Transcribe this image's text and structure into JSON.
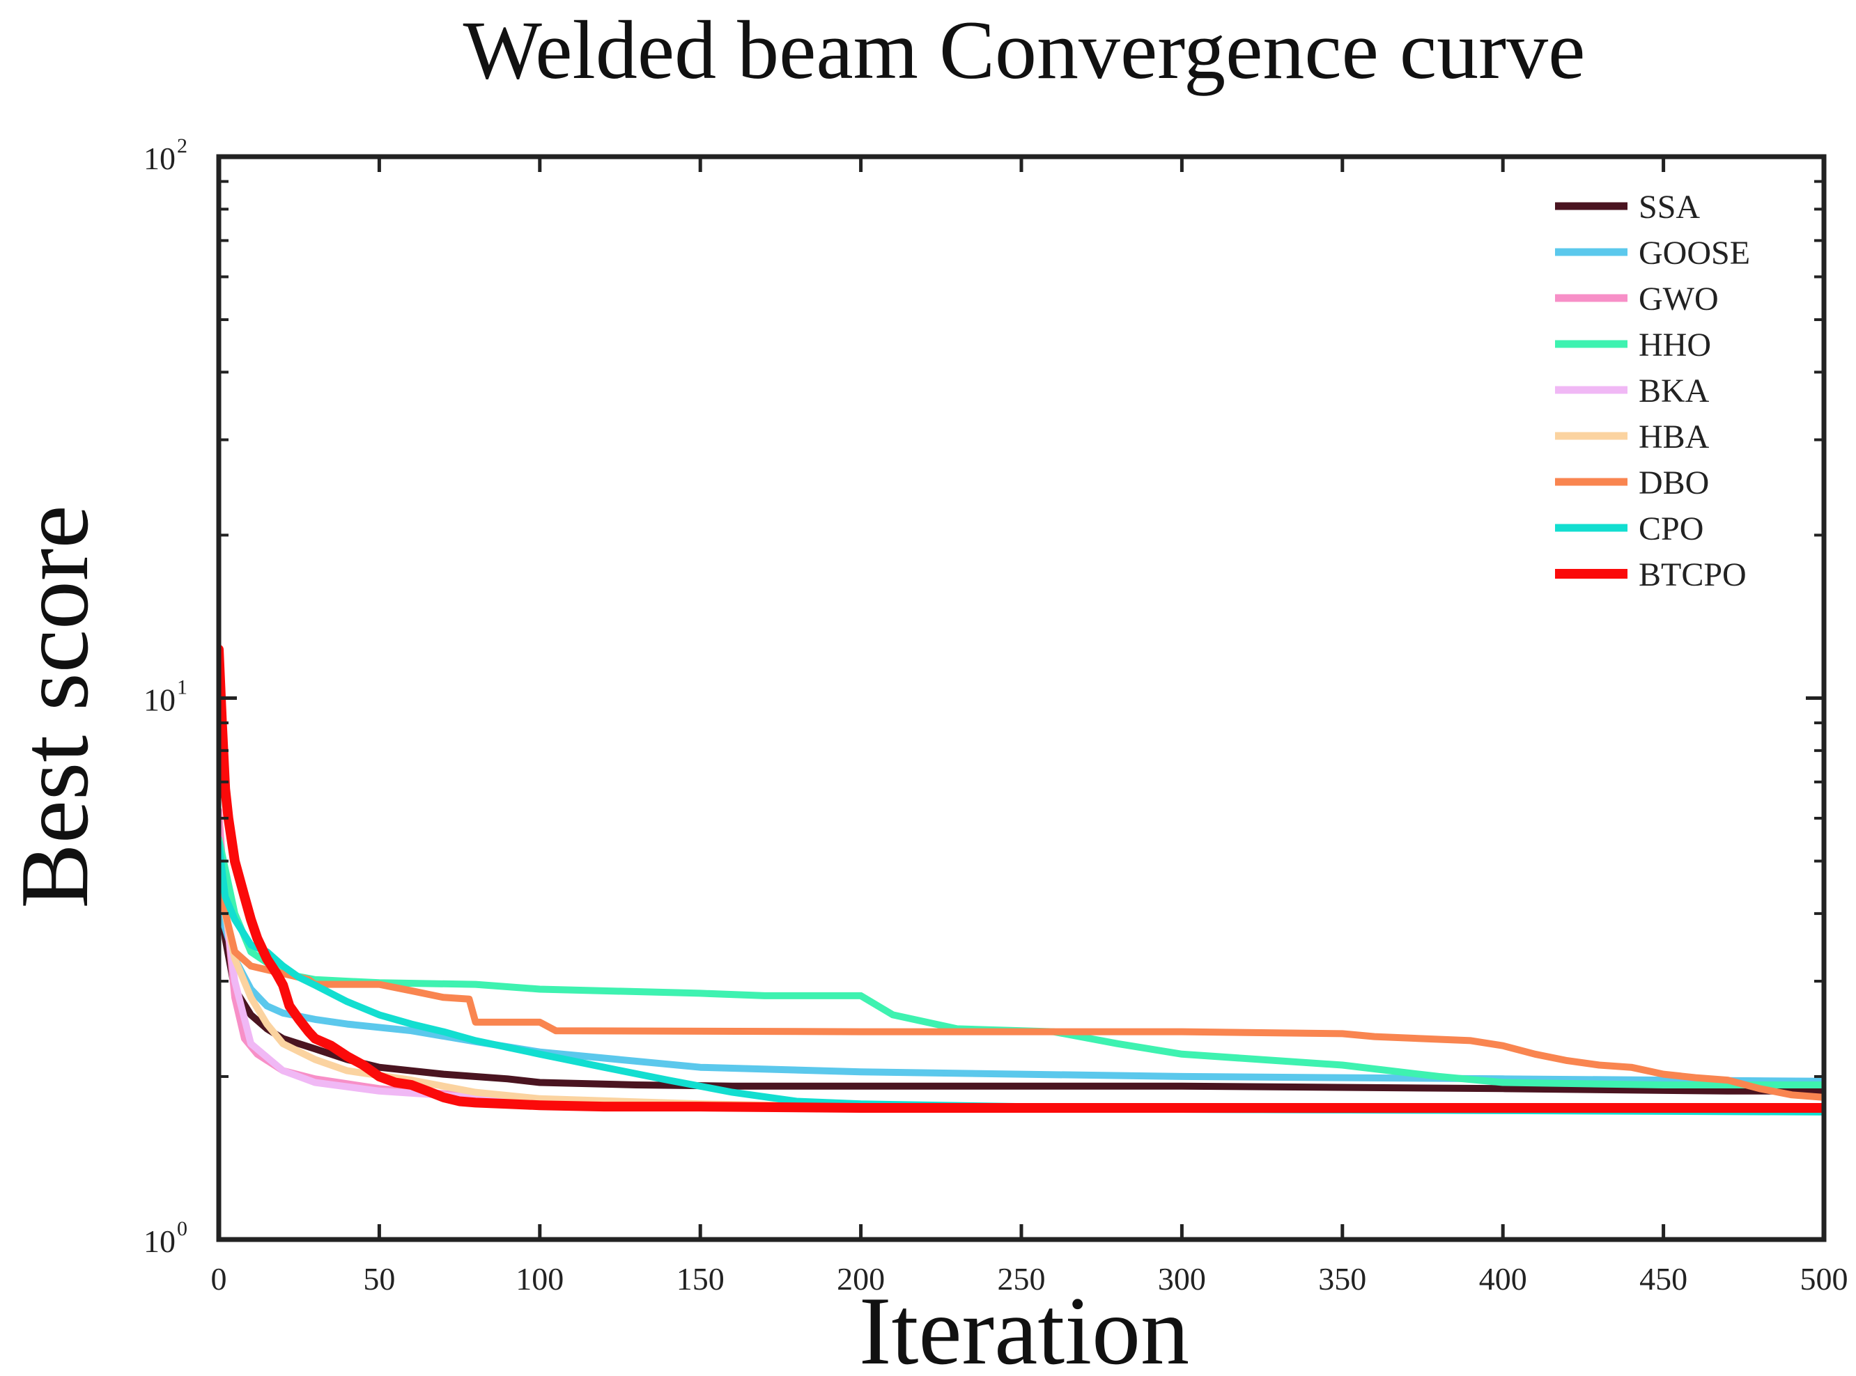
{
  "chart_data": {
    "type": "line",
    "title": "Welded beam Convergence curve",
    "xlabel": "Iteration",
    "ylabel": "Best score",
    "xlim": [
      0,
      500
    ],
    "ylim": [
      1,
      100
    ],
    "yscale": "log",
    "legend_position": "top-right",
    "x_ticks": [
      {
        "value": 0,
        "label": "0"
      },
      {
        "value": 50,
        "label": "50"
      },
      {
        "value": 100,
        "label": "100"
      },
      {
        "value": 150,
        "label": "150"
      },
      {
        "value": 200,
        "label": "200"
      },
      {
        "value": 250,
        "label": "250"
      },
      {
        "value": 300,
        "label": "300"
      },
      {
        "value": 350,
        "label": "350"
      },
      {
        "value": 400,
        "label": "400"
      },
      {
        "value": 450,
        "label": "450"
      },
      {
        "value": 500,
        "label": "500"
      }
    ],
    "y_ticks": [
      {
        "value": 1,
        "base": "10",
        "exp": "0"
      },
      {
        "value": 10,
        "base": "10",
        "exp": "1"
      },
      {
        "value": 100,
        "base": "10",
        "exp": "2"
      }
    ],
    "series": [
      {
        "name": "SSA",
        "color": "#4a1420",
        "x": [
          0,
          2,
          5,
          10,
          15,
          20,
          30,
          40,
          50,
          70,
          90,
          100,
          130,
          160,
          200,
          300,
          400,
          470,
          500
        ],
        "y": [
          4.6,
          3.6,
          2.9,
          2.6,
          2.45,
          2.35,
          2.25,
          2.15,
          2.08,
          2.02,
          1.98,
          1.95,
          1.93,
          1.92,
          1.92,
          1.92,
          1.9,
          1.88,
          1.88
        ]
      },
      {
        "name": "GOOSE",
        "color": "#5bc8ec",
        "x": [
          0,
          5,
          10,
          15,
          20,
          30,
          40,
          60,
          80,
          100,
          150,
          200,
          250,
          300,
          350,
          400,
          450,
          500
        ],
        "y": [
          4.1,
          3.3,
          2.9,
          2.7,
          2.62,
          2.55,
          2.5,
          2.43,
          2.32,
          2.22,
          2.08,
          2.04,
          2.02,
          2.0,
          1.99,
          1.98,
          1.97,
          1.96
        ]
      },
      {
        "name": "GWO",
        "color": "#f78fc7",
        "x": [
          0,
          2,
          5,
          8,
          12,
          20,
          30,
          50,
          80,
          100,
          150,
          200,
          300,
          400,
          500
        ],
        "y": [
          6.2,
          4.2,
          2.8,
          2.35,
          2.2,
          2.05,
          1.98,
          1.9,
          1.84,
          1.8,
          1.77,
          1.75,
          1.74,
          1.73,
          1.73
        ]
      },
      {
        "name": "HHO",
        "color": "#3ef2b0",
        "x": [
          0,
          5,
          10,
          20,
          30,
          50,
          80,
          100,
          150,
          170,
          200,
          210,
          230,
          260,
          280,
          300,
          350,
          380,
          400,
          450,
          500
        ],
        "y": [
          5.5,
          4.0,
          3.4,
          3.1,
          3.02,
          2.98,
          2.96,
          2.9,
          2.85,
          2.82,
          2.82,
          2.6,
          2.45,
          2.42,
          2.3,
          2.2,
          2.1,
          2.0,
          1.95,
          1.93,
          1.93
        ]
      },
      {
        "name": "BKA",
        "color": "#f0b8f5",
        "x": [
          0,
          5,
          10,
          20,
          30,
          50,
          80,
          100,
          150,
          200,
          300,
          400,
          500
        ],
        "y": [
          5.0,
          3.0,
          2.3,
          2.05,
          1.95,
          1.88,
          1.83,
          1.8,
          1.77,
          1.76,
          1.75,
          1.74,
          1.73
        ]
      },
      {
        "name": "HBA",
        "color": "#fbd3a0",
        "x": [
          0,
          2,
          5,
          10,
          15,
          20,
          30,
          40,
          60,
          80,
          100,
          150,
          200,
          300,
          400,
          500
        ],
        "y": [
          4.9,
          4.0,
          3.3,
          2.8,
          2.5,
          2.3,
          2.15,
          2.05,
          1.97,
          1.87,
          1.82,
          1.78,
          1.76,
          1.75,
          1.74,
          1.74
        ]
      },
      {
        "name": "DBO",
        "color": "#f98550",
        "x": [
          0,
          5,
          10,
          20,
          28,
          30,
          50,
          60,
          70,
          78,
          80,
          100,
          105,
          200,
          300,
          350,
          360,
          390,
          400,
          410,
          420,
          430,
          440,
          450,
          460,
          470,
          480,
          490,
          500
        ],
        "y": [
          4.5,
          3.4,
          3.2,
          3.1,
          3.02,
          2.96,
          2.96,
          2.88,
          2.8,
          2.78,
          2.52,
          2.52,
          2.43,
          2.42,
          2.42,
          2.4,
          2.37,
          2.33,
          2.28,
          2.2,
          2.14,
          2.1,
          2.08,
          2.02,
          1.99,
          1.97,
          1.9,
          1.85,
          1.83
        ]
      },
      {
        "name": "CPO",
        "color": "#12ded0",
        "x": [
          0,
          2,
          5,
          10,
          15,
          20,
          25,
          30,
          40,
          50,
          60,
          70,
          80,
          100,
          120,
          140,
          160,
          180,
          200,
          250,
          300,
          400,
          500
        ],
        "y": [
          5.4,
          4.3,
          3.9,
          3.5,
          3.4,
          3.2,
          3.05,
          2.95,
          2.75,
          2.6,
          2.5,
          2.42,
          2.33,
          2.2,
          2.08,
          1.97,
          1.87,
          1.8,
          1.78,
          1.76,
          1.74,
          1.73,
          1.72
        ]
      },
      {
        "name": "BTCPO",
        "color": "#fb0a0a",
        "x": [
          0,
          1,
          2,
          3,
          5,
          8,
          10,
          12,
          15,
          18,
          20,
          22,
          25,
          28,
          30,
          35,
          40,
          45,
          50,
          55,
          60,
          65,
          70,
          75,
          80,
          90,
          100,
          120,
          150,
          200,
          300,
          400,
          500
        ],
        "y": [
          12.3,
          9.0,
          6.8,
          6.0,
          5.0,
          4.3,
          3.9,
          3.6,
          3.3,
          3.1,
          2.95,
          2.7,
          2.55,
          2.42,
          2.35,
          2.28,
          2.18,
          2.1,
          2.0,
          1.95,
          1.93,
          1.88,
          1.83,
          1.8,
          1.79,
          1.78,
          1.77,
          1.76,
          1.76,
          1.75,
          1.75,
          1.75,
          1.75
        ]
      }
    ]
  }
}
